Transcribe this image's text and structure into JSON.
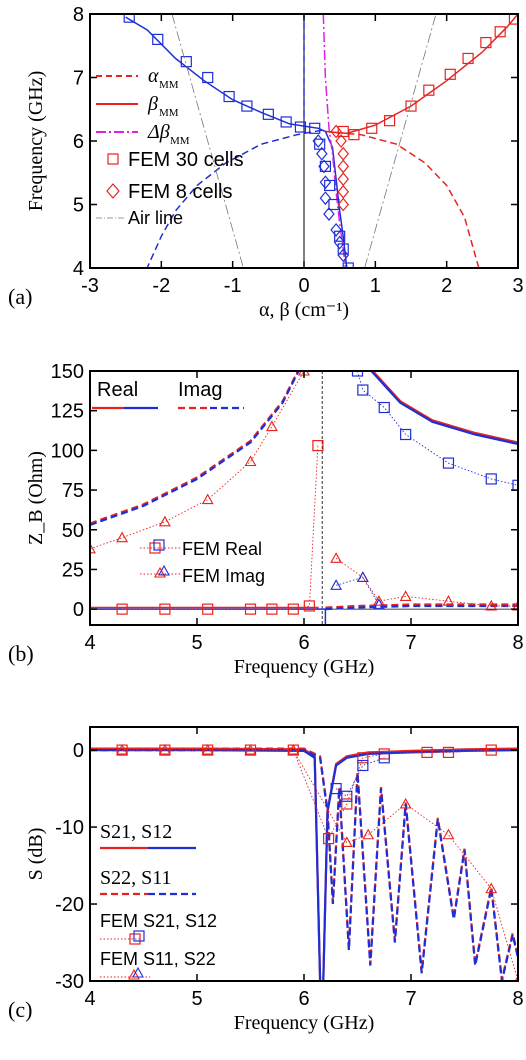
{
  "colors": {
    "red": "#e8231f",
    "blue": "#1f2fd6",
    "magenta": "#e020e0",
    "gray": "#777777",
    "black": "#000000"
  },
  "chart_data": [
    {
      "panel": "(a)",
      "type": "line",
      "xlabel": "α, β (cm⁻¹)",
      "ylabel": "Frequency (GHz)",
      "xlim": [
        -3,
        3
      ],
      "ylim": [
        4,
        8
      ],
      "xticks": [
        "-3",
        "-2",
        "-1",
        "0",
        "1",
        "2",
        "3"
      ],
      "yticks": [
        "4",
        "5",
        "6",
        "7",
        "8"
      ],
      "legend": [
        "α_MM",
        "β_MM",
        "Δβ_MM",
        "FEM 30 cells",
        "FEM 8 cells",
        "Air line"
      ],
      "legend_position": "left",
      "series": [
        {
          "name": "α_MM",
          "style": "red-dashed",
          "points": [
            [
              0.3,
              6.15
            ],
            [
              0.8,
              6.1
            ],
            [
              1.3,
              5.95
            ],
            [
              1.7,
              5.65
            ],
            [
              2.0,
              5.3
            ],
            [
              2.25,
              4.8
            ],
            [
              2.45,
              4.0
            ]
          ]
        },
        {
          "name": "α_MM",
          "style": "blue-dashed",
          "points": [
            [
              0.25,
              6.17
            ],
            [
              -0.1,
              6.1
            ],
            [
              -0.6,
              5.95
            ],
            [
              -1.1,
              5.65
            ],
            [
              -1.5,
              5.3
            ],
            [
              -1.8,
              4.9
            ],
            [
              -2.0,
              4.5
            ],
            [
              -2.2,
              4.0
            ]
          ]
        },
        {
          "name": "α_MM",
          "style": "blue-dashed-vertical",
          "points": [
            [
              0.0,
              6.2
            ],
            [
              0.0,
              8.0
            ]
          ]
        },
        {
          "name": "β_MM",
          "style": "blue-solid",
          "points": [
            [
              -2.5,
              7.95
            ],
            [
              -2.2,
              7.75
            ],
            [
              -1.8,
              7.3
            ],
            [
              -1.4,
              6.95
            ],
            [
              -1.0,
              6.65
            ],
            [
              -0.6,
              6.45
            ],
            [
              -0.2,
              6.27
            ],
            [
              0.2,
              6.2
            ],
            [
              0.3,
              6.15
            ],
            [
              0.4,
              5.9
            ],
            [
              0.45,
              5.4
            ],
            [
              0.5,
              4.9
            ],
            [
              0.55,
              4.5
            ],
            [
              0.6,
              4.0
            ]
          ]
        },
        {
          "name": "β_MM",
          "style": "red-solid",
          "points": [
            [
              0.3,
              6.15
            ],
            [
              0.6,
              6.12
            ],
            [
              1.0,
              6.25
            ],
            [
              1.5,
              6.55
            ],
            [
              2.0,
              6.95
            ],
            [
              2.5,
              7.4
            ],
            [
              2.85,
              7.8
            ],
            [
              3.0,
              8.0
            ]
          ]
        },
        {
          "name": "Δβ_MM",
          "style": "magenta-dashdot",
          "points": [
            [
              0.27,
              8.0
            ],
            [
              0.3,
              7.0
            ],
            [
              0.35,
              6.2
            ],
            [
              0.4,
              5.8
            ],
            [
              0.45,
              5.2
            ],
            [
              0.5,
              4.7
            ],
            [
              0.55,
              4.3
            ],
            [
              0.58,
              4.0
            ]
          ]
        },
        {
          "name": "FEM 30 cells",
          "style": "blue-square",
          "points": [
            [
              -2.45,
              7.95
            ],
            [
              -2.05,
              7.6
            ],
            [
              -1.65,
              7.25
            ],
            [
              -1.35,
              7.0
            ],
            [
              -1.05,
              6.7
            ],
            [
              -0.8,
              6.55
            ],
            [
              -0.5,
              6.42
            ],
            [
              -0.25,
              6.3
            ],
            [
              -0.05,
              6.22
            ],
            [
              0.15,
              6.2
            ],
            [
              0.22,
              5.95
            ],
            [
              0.3,
              5.6
            ],
            [
              0.36,
              5.3
            ],
            [
              0.42,
              5.0
            ],
            [
              0.5,
              4.5
            ],
            [
              0.55,
              4.3
            ],
            [
              0.62,
              4.0
            ]
          ]
        },
        {
          "name": "FEM 30 cells",
          "style": "red-square",
          "points": [
            [
              0.55,
              6.15
            ],
            [
              0.7,
              6.1
            ],
            [
              0.95,
              6.2
            ],
            [
              1.2,
              6.32
            ],
            [
              1.5,
              6.55
            ],
            [
              1.75,
              6.8
            ],
            [
              2.05,
              7.05
            ],
            [
              2.3,
              7.3
            ],
            [
              2.55,
              7.55
            ],
            [
              2.75,
              7.72
            ],
            [
              2.95,
              7.92
            ]
          ]
        },
        {
          "name": "FEM 8 cells",
          "style": "blue-diamond",
          "points": [
            [
              0.2,
              6.0
            ],
            [
              0.25,
              5.8
            ],
            [
              0.28,
              5.6
            ],
            [
              0.3,
              5.35
            ],
            [
              0.3,
              5.1
            ],
            [
              0.35,
              4.85
            ],
            [
              0.45,
              4.6
            ],
            [
              0.5,
              4.4
            ],
            [
              0.55,
              4.2
            ]
          ]
        },
        {
          "name": "FEM 8 cells",
          "style": "red-diamond",
          "points": [
            [
              0.45,
              6.15
            ],
            [
              0.52,
              6.0
            ],
            [
              0.55,
              5.8
            ],
            [
              0.55,
              5.6
            ],
            [
              0.55,
              5.4
            ],
            [
              0.55,
              5.2
            ],
            [
              0.55,
              5.0
            ]
          ]
        },
        {
          "name": "Air line",
          "style": "gray-dashdot",
          "points": [
            [
              -1.85,
              8.0
            ],
            [
              -0.85,
              4.0
            ]
          ]
        },
        {
          "name": "Air line",
          "style": "gray-dashdot",
          "points": [
            [
              0.85,
              4.0
            ],
            [
              1.85,
              8.0
            ]
          ]
        }
      ]
    },
    {
      "panel": "(b)",
      "type": "line",
      "xlabel": "Frequency (GHz)",
      "ylabel": "Z_B (Ohm)",
      "xlim": [
        4,
        8
      ],
      "ylim": [
        -10,
        150
      ],
      "xticks": [
        "4",
        "5",
        "6",
        "7",
        "8"
      ],
      "yticks": [
        "0",
        "25",
        "50",
        "75",
        "100",
        "125",
        "150"
      ],
      "legend": [
        "Real",
        "Imag",
        "FEM Real",
        "FEM Imag"
      ],
      "legend_position": "top-left",
      "series": [
        {
          "name": "Imag",
          "style": "red-blue-dashed",
          "points": [
            [
              4.0,
              53
            ],
            [
              4.5,
              65
            ],
            [
              5.0,
              82
            ],
            [
              5.5,
              105
            ],
            [
              5.8,
              130
            ],
            [
              5.95,
              150
            ]
          ]
        },
        {
          "name": "Imag",
          "style": "red-blue-dashed",
          "points": [
            [
              6.2,
              0
            ],
            [
              6.5,
              1
            ],
            [
              7.0,
              2
            ],
            [
              7.5,
              2
            ],
            [
              8.0,
              2
            ]
          ]
        },
        {
          "name": "Real",
          "style": "red-solid",
          "points": [
            [
              4.0,
              1
            ],
            [
              5.0,
              1
            ],
            [
              6.0,
              1
            ],
            [
              6.13,
              1
            ],
            [
              6.13,
              0
            ]
          ]
        },
        {
          "name": "Real",
          "style": "blue-solid",
          "points": [
            [
              4.0,
              0
            ],
            [
              5.0,
              0
            ],
            [
              6.0,
              0
            ],
            [
              6.2,
              0
            ],
            [
              6.2,
              -10
            ]
          ]
        },
        {
          "name": "Real",
          "style": "red-blue-solid",
          "points": [
            [
              6.63,
              150
            ],
            [
              6.9,
              130
            ],
            [
              7.2,
              118
            ],
            [
              7.6,
              110
            ],
            [
              8.0,
              104
            ]
          ]
        },
        {
          "name": "FEM Imag",
          "style": "red-triangle-dotted",
          "points": [
            [
              4.0,
              38
            ],
            [
              4.3,
              45
            ],
            [
              4.7,
              55
            ],
            [
              5.1,
              69
            ],
            [
              5.5,
              93
            ],
            [
              5.7,
              115
            ],
            [
              6.0,
              150
            ]
          ]
        },
        {
          "name": "FEM Real",
          "style": "blue-square-dotted",
          "points": [
            [
              6.5,
              150
            ],
            [
              6.55,
              138
            ],
            [
              6.75,
              127
            ],
            [
              6.95,
              110
            ],
            [
              7.35,
              92
            ],
            [
              7.75,
              82
            ],
            [
              8.0,
              78
            ]
          ]
        },
        {
          "name": "FEM Real",
          "style": "red-square-dotted",
          "points": [
            [
              4.3,
              0
            ],
            [
              4.7,
              0
            ],
            [
              5.1,
              0
            ],
            [
              5.5,
              0
            ],
            [
              5.7,
              0
            ],
            [
              5.9,
              0
            ],
            [
              6.05,
              2
            ],
            [
              6.13,
              103
            ]
          ]
        },
        {
          "name": "FEM Imag",
          "style": "red-triangle-dotted",
          "points": [
            [
              6.3,
              32
            ],
            [
              6.55,
              20
            ],
            [
              6.7,
              5
            ],
            [
              6.95,
              8
            ],
            [
              7.35,
              5
            ],
            [
              7.75,
              2
            ],
            [
              8.0,
              2
            ]
          ]
        },
        {
          "name": "FEM Imag",
          "style": "blue-triangle-dotted",
          "points": [
            [
              6.3,
              15
            ],
            [
              6.55,
              20
            ],
            [
              6.7,
              3
            ]
          ]
        }
      ]
    },
    {
      "panel": "(c)",
      "type": "line",
      "xlabel": "Frequency (GHz)",
      "ylabel": "S (dB)",
      "xlim": [
        4,
        8
      ],
      "ylim": [
        -30,
        3
      ],
      "xticks": [
        "4",
        "5",
        "6",
        "7",
        "8"
      ],
      "yticks": [
        "-30",
        "-20",
        "-10",
        "0"
      ],
      "legend": [
        "S21, S12",
        "S22, S11",
        "FEM S21, S12",
        "FEM S11, S22"
      ],
      "legend_position": "left",
      "series": [
        {
          "name": "S21, S12",
          "style": "red-blue-solid",
          "points": [
            [
              4.0,
              0
            ],
            [
              5.0,
              0
            ],
            [
              6.0,
              -0.1
            ],
            [
              6.1,
              -1
            ],
            [
              6.15,
              -30
            ]
          ]
        },
        {
          "name": "S21, S12",
          "style": "red-blue-solid",
          "points": [
            [
              6.18,
              -30
            ],
            [
              6.22,
              -8
            ],
            [
              6.3,
              -2
            ],
            [
              6.4,
              -1
            ],
            [
              6.6,
              -0.5
            ],
            [
              7.0,
              -0.3
            ],
            [
              7.5,
              -0.1
            ],
            [
              8.0,
              0
            ]
          ]
        },
        {
          "name": "S22, S11",
          "style": "red-blue-dashed",
          "points": [
            [
              4.0,
              0
            ],
            [
              6.0,
              0
            ],
            [
              6.15,
              -1
            ],
            [
              6.22,
              -8
            ],
            [
              6.27,
              -20
            ],
            [
              6.33,
              -5
            ],
            [
              6.42,
              -26
            ],
            [
              6.5,
              -3
            ],
            [
              6.62,
              -28
            ],
            [
              6.72,
              -5
            ],
            [
              6.85,
              -25
            ],
            [
              6.95,
              -7
            ],
            [
              7.1,
              -29
            ],
            [
              7.25,
              -9
            ],
            [
              7.4,
              -22
            ],
            [
              7.5,
              -13
            ],
            [
              7.6,
              -28
            ],
            [
              7.75,
              -18
            ],
            [
              7.85,
              -30
            ],
            [
              7.95,
              -24
            ],
            [
              8.0,
              -27
            ]
          ]
        },
        {
          "name": "FEM S21, S12",
          "style": "red-square-dotted",
          "points": [
            [
              4.3,
              0
            ],
            [
              4.7,
              0
            ],
            [
              5.1,
              0
            ],
            [
              5.5,
              0
            ],
            [
              5.9,
              0
            ],
            [
              6.23,
              -11.5
            ],
            [
              6.4,
              -7
            ],
            [
              6.55,
              -1
            ],
            [
              6.75,
              -0.5
            ],
            [
              7.15,
              -0.3
            ],
            [
              7.35,
              -0.3
            ],
            [
              7.75,
              0
            ]
          ]
        },
        {
          "name": "FEM S21, S12",
          "style": "blue-square-dotted",
          "points": [
            [
              6.3,
              -5
            ],
            [
              6.4,
              -6
            ],
            [
              6.55,
              -2
            ],
            [
              6.75,
              -1
            ]
          ]
        },
        {
          "name": "FEM S11, S22",
          "style": "red-triangle-dotted",
          "points": [
            [
              4.3,
              0
            ],
            [
              4.7,
              0
            ],
            [
              5.1,
              0
            ],
            [
              5.5,
              0
            ],
            [
              5.9,
              0
            ],
            [
              6.4,
              -12
            ],
            [
              6.6,
              -11
            ],
            [
              6.95,
              -7
            ],
            [
              7.35,
              -11
            ],
            [
              7.75,
              -18
            ],
            [
              8.0,
              -30
            ]
          ]
        }
      ]
    }
  ],
  "labels": {
    "panel_a": "(a)",
    "panel_b": "(b)",
    "panel_c": "(c)"
  }
}
